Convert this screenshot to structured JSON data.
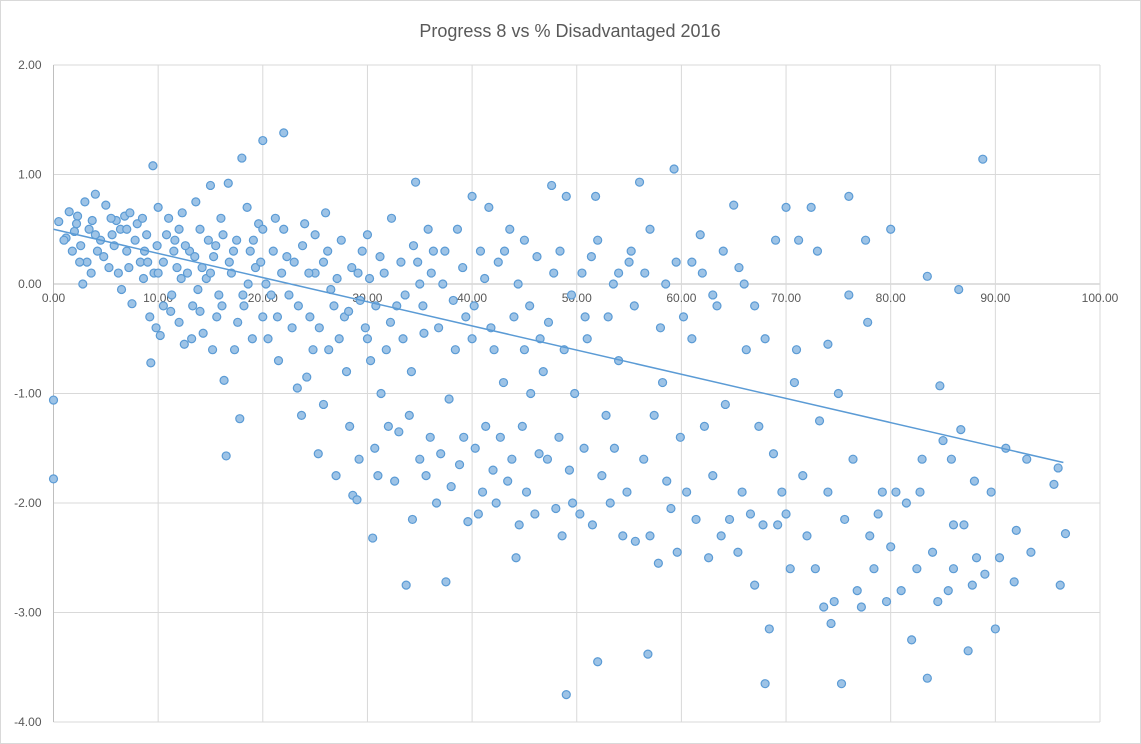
{
  "chart_data": {
    "type": "scatter",
    "title": "Progress 8 vs % Disadvantaged  2016",
    "xlabel": "",
    "ylabel": "",
    "xlim": [
      0,
      100
    ],
    "ylim": [
      -4,
      2
    ],
    "x_ticks": [
      "0.00",
      "10.00",
      "20.00",
      "30.00",
      "40.00",
      "50.00",
      "60.00",
      "70.00",
      "80.00",
      "90.00",
      "100.00"
    ],
    "y_ticks": [
      "2.00",
      "1.00",
      "0.00",
      "-1.00",
      "-2.00",
      "-3.00",
      "-4.00"
    ],
    "grid": true,
    "legend": "none",
    "colors": {
      "marker_fill": "#9dc3e6",
      "marker_stroke": "#5b9bd5",
      "trendline": "#5b9bd5",
      "grid": "#d9d9d9"
    },
    "trendline": {
      "type": "linear",
      "x": [
        0,
        96.5
      ],
      "y": [
        0.5,
        -1.63
      ]
    },
    "points": [
      [
        0.5,
        0.57
      ],
      [
        1.2,
        0.42
      ],
      [
        1.5,
        0.66
      ],
      [
        2,
        0.48
      ],
      [
        2.3,
        0.62
      ],
      [
        2.6,
        0.35
      ],
      [
        3,
        0.75
      ],
      [
        3.2,
        0.2
      ],
      [
        3.4,
        0.5
      ],
      [
        3.7,
        0.58
      ],
      [
        4,
        0.82
      ],
      [
        4.2,
        0.3
      ],
      [
        4.5,
        0.4
      ],
      [
        2.8,
        0
      ],
      [
        5,
        0.72
      ],
      [
        5.3,
        0.15
      ],
      [
        5.6,
        0.45
      ],
      [
        6,
        0.58
      ],
      [
        6.2,
        0.1
      ],
      [
        6.5,
        -0.05
      ],
      [
        6.8,
        0.62
      ],
      [
        7,
        0.3
      ],
      [
        7.3,
        0.65
      ],
      [
        7.5,
        -0.18
      ],
      [
        7.8,
        0.4
      ],
      [
        8,
        0.55
      ],
      [
        8.3,
        0.2
      ],
      [
        8.6,
        0.05
      ],
      [
        8.9,
        0.45
      ],
      [
        9.2,
        -0.3
      ],
      [
        9.3,
        -0.72
      ],
      [
        9.5,
        1.08
      ],
      [
        9.6,
        0.1
      ],
      [
        9.8,
        -0.4
      ],
      [
        10,
        0.7
      ],
      [
        10.2,
        -0.47
      ],
      [
        0,
        -1.06
      ],
      [
        0,
        -1.78
      ],
      [
        4.8,
        0.25
      ],
      [
        5.8,
        0.35
      ],
      [
        7.2,
        0.15
      ],
      [
        8.7,
        0.3
      ],
      [
        3.6,
        0.1
      ],
      [
        1.8,
        0.3
      ],
      [
        2.2,
        0.55
      ],
      [
        6.4,
        0.5
      ],
      [
        9,
        0.2
      ],
      [
        9.9,
        0.35
      ],
      [
        10.5,
        0.2
      ],
      [
        11,
        0.6
      ],
      [
        11.3,
        -0.1
      ],
      [
        11.6,
        0.4
      ],
      [
        12,
        -0.35
      ],
      [
        12.3,
        0.65
      ],
      [
        12.5,
        -0.55
      ],
      [
        12.8,
        0.1
      ],
      [
        13,
        0.3
      ],
      [
        13.3,
        -0.2
      ],
      [
        13.6,
        0.75
      ],
      [
        14,
        0.5
      ],
      [
        14.3,
        -0.45
      ],
      [
        14.6,
        0.05
      ],
      [
        15,
        0.9
      ],
      [
        15.3,
        0.25
      ],
      [
        15.6,
        -0.3
      ],
      [
        16,
        0.6
      ],
      [
        16.3,
        -0.88
      ],
      [
        16.5,
        -1.57
      ],
      [
        16.7,
        0.92
      ],
      [
        17,
        0.1
      ],
      [
        17.3,
        -0.6
      ],
      [
        17.5,
        0.4
      ],
      [
        17.8,
        -1.23
      ],
      [
        18,
        1.15
      ],
      [
        18.2,
        -0.2
      ],
      [
        18.5,
        0.7
      ],
      [
        18.8,
        0.3
      ],
      [
        19,
        -0.5
      ],
      [
        19.3,
        0.15
      ],
      [
        19.6,
        0.55
      ],
      [
        20,
        1.31
      ],
      [
        20,
        -0.3
      ],
      [
        10.8,
        0.45
      ],
      [
        11.8,
        0.15
      ],
      [
        12.6,
        0.35
      ],
      [
        13.8,
        -0.05
      ],
      [
        14.8,
        0.4
      ],
      [
        15.8,
        -0.1
      ],
      [
        16.8,
        0.2
      ],
      [
        17.6,
        -0.35
      ],
      [
        18.6,
        0.0
      ],
      [
        19.8,
        0.2
      ],
      [
        13.2,
        -0.5
      ],
      [
        15.2,
        -0.6
      ],
      [
        11.2,
        -0.25
      ],
      [
        16.2,
        0.45
      ],
      [
        20.5,
        -0.5
      ],
      [
        21,
        0.3
      ],
      [
        21.5,
        -0.7
      ],
      [
        22,
        1.38
      ],
      [
        22,
        0.5
      ],
      [
        22.5,
        -0.1
      ],
      [
        23,
        0.2
      ],
      [
        23.3,
        -0.95
      ],
      [
        23.7,
        -1.2
      ],
      [
        24,
        0.55
      ],
      [
        24.5,
        -0.3
      ],
      [
        25,
        0.1
      ],
      [
        25.3,
        -1.55
      ],
      [
        25.8,
        -1.1
      ],
      [
        26,
        0.65
      ],
      [
        26.3,
        -0.6
      ],
      [
        26.8,
        -0.2
      ],
      [
        27,
        -1.75
      ],
      [
        27.5,
        0.4
      ],
      [
        28,
        -0.8
      ],
      [
        28.3,
        -1.3
      ],
      [
        28.6,
        -1.93
      ],
      [
        29,
        -1.97
      ],
      [
        29.2,
        -1.6
      ],
      [
        29.5,
        0.3
      ],
      [
        29.8,
        -0.4
      ],
      [
        20.8,
        -0.1
      ],
      [
        21.8,
        0.1
      ],
      [
        22.8,
        -0.4
      ],
      [
        23.8,
        0.35
      ],
      [
        24.8,
        -0.6
      ],
      [
        25.8,
        0.2
      ],
      [
        26.5,
        -0.05
      ],
      [
        27.3,
        -0.5
      ],
      [
        28.5,
        0.15
      ],
      [
        29.3,
        -0.15
      ],
      [
        24.2,
        -0.85
      ],
      [
        27.8,
        -0.3
      ],
      [
        21.2,
        0.6
      ],
      [
        30,
        0.45
      ],
      [
        30.3,
        -0.7
      ],
      [
        30.5,
        -2.32
      ],
      [
        30.7,
        -1.5
      ],
      [
        31,
        -1.75
      ],
      [
        31.3,
        -1
      ],
      [
        31.6,
        0.1
      ],
      [
        32,
        -1.3
      ],
      [
        32.3,
        0.6
      ],
      [
        32.6,
        -1.8
      ],
      [
        33,
        -1.35
      ],
      [
        33.4,
        -0.5
      ],
      [
        33.7,
        -2.75
      ],
      [
        34,
        -1.2
      ],
      [
        34.3,
        -2.15
      ],
      [
        34.6,
        0.93
      ],
      [
        35,
        -1.6
      ],
      [
        35.3,
        -0.2
      ],
      [
        35.6,
        -1.75
      ],
      [
        36,
        -1.4
      ],
      [
        36.3,
        0.3
      ],
      [
        36.6,
        -2.0
      ],
      [
        37,
        -1.55
      ],
      [
        37.5,
        -2.72
      ],
      [
        37.8,
        -1.05
      ],
      [
        38,
        -1.85
      ],
      [
        38.4,
        -0.6
      ],
      [
        38.8,
        -1.65
      ],
      [
        39.2,
        -1.4
      ],
      [
        39.6,
        -2.17
      ],
      [
        40,
        0.8
      ],
      [
        32.8,
        -0.2
      ],
      [
        34.8,
        0.2
      ],
      [
        36.8,
        -0.4
      ],
      [
        38.6,
        0.5
      ],
      [
        31.8,
        -0.6
      ],
      [
        35.8,
        0.5
      ],
      [
        33.2,
        0.2
      ],
      [
        37.2,
        0.0
      ],
      [
        39.4,
        -0.3
      ],
      [
        30.8,
        -0.2
      ],
      [
        34.2,
        -0.8
      ],
      [
        40.3,
        -1.5
      ],
      [
        40.6,
        -2.1
      ],
      [
        41,
        -1.9
      ],
      [
        41.3,
        -1.3
      ],
      [
        41.6,
        0.7
      ],
      [
        42,
        -1.7
      ],
      [
        42.3,
        -2.0
      ],
      [
        42.7,
        -1.4
      ],
      [
        43,
        -0.9
      ],
      [
        43.4,
        -1.8
      ],
      [
        43.8,
        -1.6
      ],
      [
        44.2,
        -2.5
      ],
      [
        44.5,
        -2.2
      ],
      [
        44.8,
        -1.3
      ],
      [
        45.2,
        -1.9
      ],
      [
        45.6,
        -1.0
      ],
      [
        46,
        -2.1
      ],
      [
        46.4,
        -1.55
      ],
      [
        46.8,
        -0.8
      ],
      [
        47.2,
        -1.6
      ],
      [
        47.6,
        0.9
      ],
      [
        48,
        -2.05
      ],
      [
        48.3,
        -1.4
      ],
      [
        48.6,
        -2.3
      ],
      [
        49,
        -3.75
      ],
      [
        49,
        0.8
      ],
      [
        49.3,
        -1.7
      ],
      [
        49.6,
        -2.0
      ],
      [
        49.8,
        -1.0
      ],
      [
        42.5,
        0.2
      ],
      [
        44,
        -0.3
      ],
      [
        45,
        0.4
      ],
      [
        46.5,
        -0.5
      ],
      [
        47.8,
        0.1
      ],
      [
        41.8,
        -0.4
      ],
      [
        43.6,
        0.5
      ],
      [
        48.8,
        -0.6
      ],
      [
        40.8,
        0.3
      ],
      [
        50.3,
        -2.1
      ],
      [
        50.7,
        -1.5
      ],
      [
        51,
        -0.5
      ],
      [
        51.5,
        -2.2
      ],
      [
        51.8,
        0.8
      ],
      [
        52,
        -3.45
      ],
      [
        52.4,
        -1.75
      ],
      [
        52.8,
        -1.2
      ],
      [
        53.2,
        -2.0
      ],
      [
        53.6,
        -1.5
      ],
      [
        54,
        -0.7
      ],
      [
        54.4,
        -2.3
      ],
      [
        54.8,
        -1.9
      ],
      [
        55.2,
        0.3
      ],
      [
        55.6,
        -2.35
      ],
      [
        56,
        0.93
      ],
      [
        56.4,
        -1.6
      ],
      [
        56.8,
        -3.38
      ],
      [
        57,
        -2.3
      ],
      [
        57.4,
        -1.2
      ],
      [
        57.8,
        -2.55
      ],
      [
        58.2,
        -0.9
      ],
      [
        58.6,
        -1.8
      ],
      [
        59,
        -2.05
      ],
      [
        59.3,
        1.05
      ],
      [
        59.6,
        -2.45
      ],
      [
        59.9,
        -1.4
      ],
      [
        50.5,
        0.1
      ],
      [
        53,
        -0.3
      ],
      [
        55,
        0.2
      ],
      [
        57,
        0.5
      ],
      [
        58.5,
        0.0
      ],
      [
        52,
        0.4
      ],
      [
        54,
        0.1
      ],
      [
        60.2,
        -0.3
      ],
      [
        60.5,
        -1.9
      ],
      [
        61,
        -0.5
      ],
      [
        61.4,
        -2.15
      ],
      [
        61.8,
        0.45
      ],
      [
        62.2,
        -1.3
      ],
      [
        62.6,
        -2.5
      ],
      [
        63,
        -1.75
      ],
      [
        63.4,
        -0.2
      ],
      [
        63.8,
        -2.3
      ],
      [
        64.2,
        -1.1
      ],
      [
        64.6,
        -2.15
      ],
      [
        65,
        0.72
      ],
      [
        65.4,
        -2.45
      ],
      [
        65.8,
        -1.9
      ],
      [
        66.2,
        -0.6
      ],
      [
        66.6,
        -2.1
      ],
      [
        67,
        -2.75
      ],
      [
        67.4,
        -1.3
      ],
      [
        67.8,
        -2.2
      ],
      [
        68,
        -3.65
      ],
      [
        68.4,
        -3.15
      ],
      [
        68.8,
        -1.55
      ],
      [
        69.2,
        -2.2
      ],
      [
        69.6,
        -1.9
      ],
      [
        70,
        0.7
      ],
      [
        70,
        -2.1
      ],
      [
        62,
        0.1
      ],
      [
        64,
        0.3
      ],
      [
        66,
        0.0
      ],
      [
        68,
        -0.5
      ],
      [
        69,
        0.4
      ],
      [
        70.4,
        -2.6
      ],
      [
        70.8,
        -0.9
      ],
      [
        71.2,
        0.4
      ],
      [
        71.6,
        -1.75
      ],
      [
        72,
        -2.3
      ],
      [
        72.4,
        0.7
      ],
      [
        72.8,
        -2.6
      ],
      [
        73.2,
        -1.25
      ],
      [
        73.6,
        -2.95
      ],
      [
        74,
        -1.9
      ],
      [
        74.3,
        -3.1
      ],
      [
        74.6,
        -2.9
      ],
      [
        75,
        -1.0
      ],
      [
        75.3,
        -3.65
      ],
      [
        75.6,
        -2.15
      ],
      [
        76,
        0.8
      ],
      [
        76.4,
        -1.6
      ],
      [
        76.8,
        -2.8
      ],
      [
        77.2,
        -2.95
      ],
      [
        77.6,
        0.4
      ],
      [
        78,
        -2.3
      ],
      [
        78.4,
        -2.6
      ],
      [
        78.8,
        -2.1
      ],
      [
        79.2,
        -1.9
      ],
      [
        79.6,
        -2.9
      ],
      [
        80,
        0.5
      ],
      [
        80,
        -2.4
      ],
      [
        73,
        0.3
      ],
      [
        74,
        -0.55
      ],
      [
        76,
        -0.1
      ],
      [
        77.8,
        -0.35
      ],
      [
        71,
        -0.6
      ],
      [
        80.5,
        -1.9
      ],
      [
        81,
        -2.8
      ],
      [
        81.5,
        -2.0
      ],
      [
        82,
        -3.25
      ],
      [
        82.5,
        -2.6
      ],
      [
        83,
        -1.6
      ],
      [
        83.5,
        0.07
      ],
      [
        83.5,
        -3.6
      ],
      [
        84,
        -2.45
      ],
      [
        84.5,
        -2.9
      ],
      [
        84.7,
        -0.93
      ],
      [
        85,
        -1.43
      ],
      [
        85.5,
        -2.8
      ],
      [
        86,
        -2.6
      ],
      [
        86.5,
        -0.05
      ],
      [
        86.7,
        -1.33
      ],
      [
        87,
        -2.2
      ],
      [
        87.4,
        -3.35
      ],
      [
        87.8,
        -2.75
      ],
      [
        88.2,
        -2.5
      ],
      [
        88.8,
        1.14
      ],
      [
        89,
        -2.65
      ],
      [
        89.6,
        -1.9
      ],
      [
        90,
        -3.15
      ],
      [
        90.4,
        -2.5
      ],
      [
        91,
        -1.5
      ],
      [
        91.8,
        -2.72
      ],
      [
        92,
        -2.25
      ],
      [
        93,
        -1.6
      ],
      [
        93.4,
        -2.45
      ],
      [
        95.6,
        -1.83
      ],
      [
        96,
        -1.68
      ],
      [
        96.2,
        -2.75
      ],
      [
        96.7,
        -2.28
      ],
      [
        82.8,
        -1.9
      ],
      [
        85.8,
        -1.6
      ],
      [
        88,
        -1.8
      ],
      [
        86,
        -2.2
      ],
      [
        1,
        0.4
      ],
      [
        2.5,
        0.2
      ],
      [
        4,
        0.45
      ],
      [
        5.5,
        0.6
      ],
      [
        7,
        0.5
      ],
      [
        8.5,
        0.6
      ],
      [
        10,
        0.1
      ],
      [
        11.5,
        0.3
      ],
      [
        12.2,
        0.05
      ],
      [
        13.5,
        0.25
      ],
      [
        14.2,
        0.15
      ],
      [
        15.5,
        0.35
      ],
      [
        16.1,
        -0.2
      ],
      [
        17.2,
        0.3
      ],
      [
        18.1,
        -0.1
      ],
      [
        19.1,
        0.4
      ],
      [
        20.3,
        0.0
      ],
      [
        21.4,
        -0.3
      ],
      [
        22.3,
        0.25
      ],
      [
        23.4,
        -0.2
      ],
      [
        24.4,
        0.1
      ],
      [
        25.4,
        -0.4
      ],
      [
        26.2,
        0.3
      ],
      [
        27.1,
        0.05
      ],
      [
        28.2,
        -0.25
      ],
      [
        29.1,
        0.1
      ],
      [
        30.2,
        0.05
      ],
      [
        31.2,
        0.25
      ],
      [
        32.2,
        -0.35
      ],
      [
        33.6,
        -0.1
      ],
      [
        34.4,
        0.35
      ],
      [
        35.4,
        -0.45
      ],
      [
        36.1,
        0.1
      ],
      [
        37.4,
        0.3
      ],
      [
        38.2,
        -0.15
      ],
      [
        39.1,
        0.15
      ],
      [
        40.2,
        -0.2
      ],
      [
        41.2,
        0.05
      ],
      [
        42.1,
        -0.6
      ],
      [
        43.1,
        0.3
      ],
      [
        44.4,
        0.0
      ],
      [
        45.5,
        -0.2
      ],
      [
        46.2,
        0.25
      ],
      [
        47.3,
        -0.35
      ],
      [
        48.4,
        0.3
      ],
      [
        49.5,
        -0.1
      ],
      [
        50.8,
        -0.3
      ],
      [
        51.4,
        0.25
      ],
      [
        53.5,
        0.0
      ],
      [
        55.5,
        -0.2
      ],
      [
        56.5,
        0.1
      ],
      [
        58,
        -0.4
      ],
      [
        59.5,
        0.2
      ],
      [
        61,
        0.2
      ],
      [
        63,
        -0.1
      ],
      [
        65.5,
        0.15
      ],
      [
        67,
        -0.2
      ],
      [
        20,
        0.5
      ],
      [
        30,
        -0.5
      ],
      [
        35,
        0.0
      ],
      [
        40,
        -0.5
      ],
      [
        45,
        -0.6
      ],
      [
        25,
        0.45
      ],
      [
        15,
        0.1
      ],
      [
        10.5,
        -0.2
      ],
      [
        12,
        0.5
      ],
      [
        14,
        -0.25
      ]
    ]
  }
}
